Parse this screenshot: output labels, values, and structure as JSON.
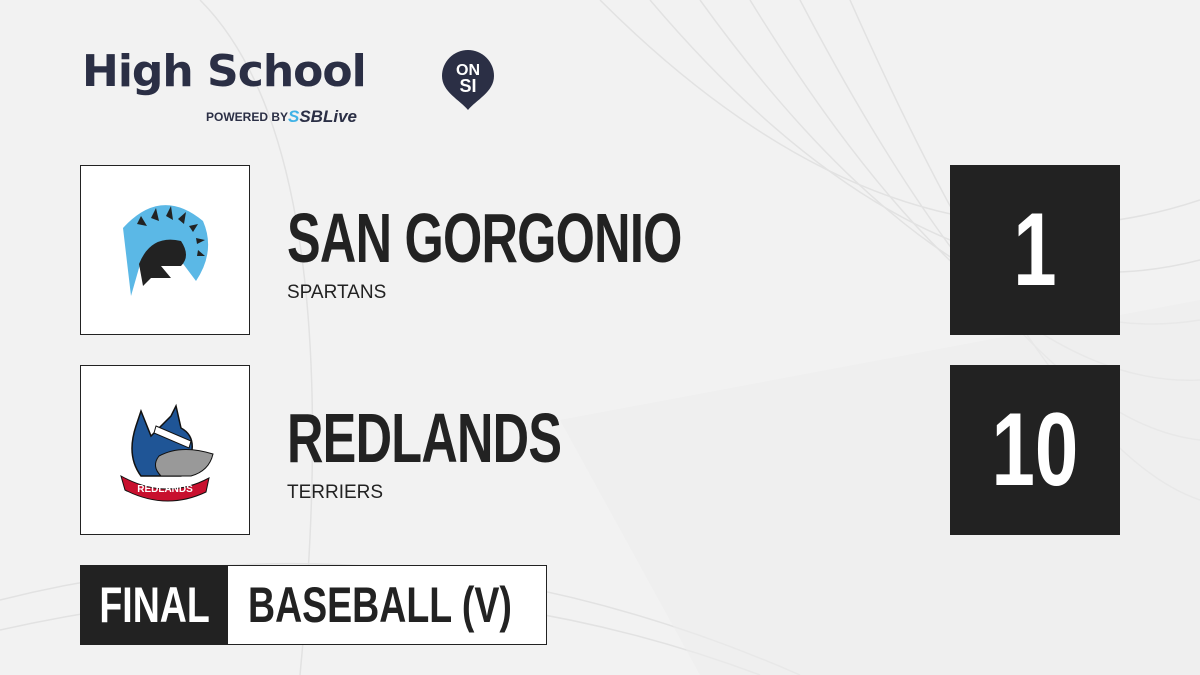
{
  "brand": {
    "title": "High School",
    "pin_top": "ON",
    "pin_bottom": "SI",
    "powered_by": "POWERED BY",
    "partner": "SBLive",
    "partner_prefix": "S",
    "accent": "#3fb2e6",
    "dark": "#2b2f45"
  },
  "teams": [
    {
      "name": "SAN GORGONIO",
      "mascot": "SPARTANS",
      "score": "1",
      "logo": "spartan-helmet"
    },
    {
      "name": "REDLANDS",
      "mascot": "TERRIERS",
      "score": "10",
      "logo": "terrier-dog",
      "logo_text": "REDLANDS"
    }
  ],
  "status": {
    "label": "FINAL",
    "sport": "BASEBALL (V)"
  }
}
